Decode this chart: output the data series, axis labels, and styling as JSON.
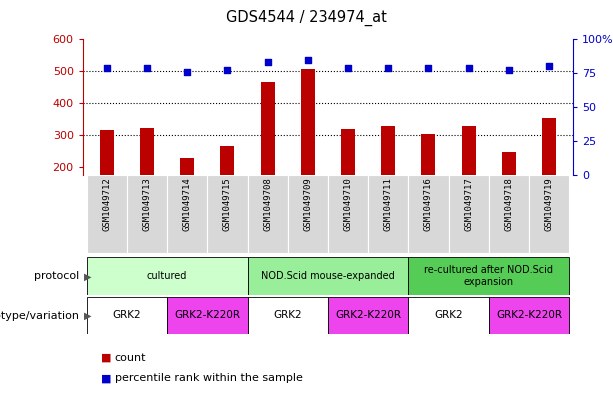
{
  "title": "GDS4544 / 234974_at",
  "samples": [
    "GSM1049712",
    "GSM1049713",
    "GSM1049714",
    "GSM1049715",
    "GSM1049708",
    "GSM1049709",
    "GSM1049710",
    "GSM1049711",
    "GSM1049716",
    "GSM1049717",
    "GSM1049718",
    "GSM1049719"
  ],
  "counts": [
    315,
    322,
    228,
    265,
    465,
    507,
    318,
    328,
    302,
    328,
    248,
    352
  ],
  "percentiles": [
    79,
    79,
    76,
    77,
    83,
    85,
    79,
    79,
    79,
    79,
    77,
    80
  ],
  "bar_color": "#bb0000",
  "dot_color": "#0000cc",
  "ylim_left": [
    175,
    600
  ],
  "ylim_right": [
    0,
    100
  ],
  "yticks_left": [
    200,
    300,
    400,
    500,
    600
  ],
  "yticks_right": [
    0,
    25,
    50,
    75,
    100
  ],
  "ytick_labels_right": [
    "0",
    "25",
    "50",
    "75",
    "100%"
  ],
  "grid_lines": [
    300,
    400,
    500
  ],
  "protocol_groups": [
    {
      "label": "cultured",
      "start": 0,
      "end": 4,
      "color": "#ccffcc"
    },
    {
      "label": "NOD.Scid mouse-expanded",
      "start": 4,
      "end": 8,
      "color": "#99ee99"
    },
    {
      "label": "re-cultured after NOD.Scid\nexpansion",
      "start": 8,
      "end": 12,
      "color": "#55cc55"
    }
  ],
  "genotype_groups": [
    {
      "label": "GRK2",
      "start": 0,
      "end": 2,
      "color": "#ffffff"
    },
    {
      "label": "GRK2-K220R",
      "start": 2,
      "end": 4,
      "color": "#ee44ee"
    },
    {
      "label": "GRK2",
      "start": 4,
      "end": 6,
      "color": "#ffffff"
    },
    {
      "label": "GRK2-K220R",
      "start": 6,
      "end": 8,
      "color": "#ee44ee"
    },
    {
      "label": "GRK2",
      "start": 8,
      "end": 10,
      "color": "#ffffff"
    },
    {
      "label": "GRK2-K220R",
      "start": 10,
      "end": 12,
      "color": "#ee44ee"
    }
  ],
  "protocol_label": "protocol",
  "genotype_label": "genotype/variation",
  "legend_items": [
    {
      "color": "#bb0000",
      "label": "count"
    },
    {
      "color": "#0000cc",
      "label": "percentile rank within the sample"
    }
  ],
  "background_color": "#ffffff",
  "plot_bg_color": "#ffffff",
  "sample_bg_color": "#d8d8d8"
}
